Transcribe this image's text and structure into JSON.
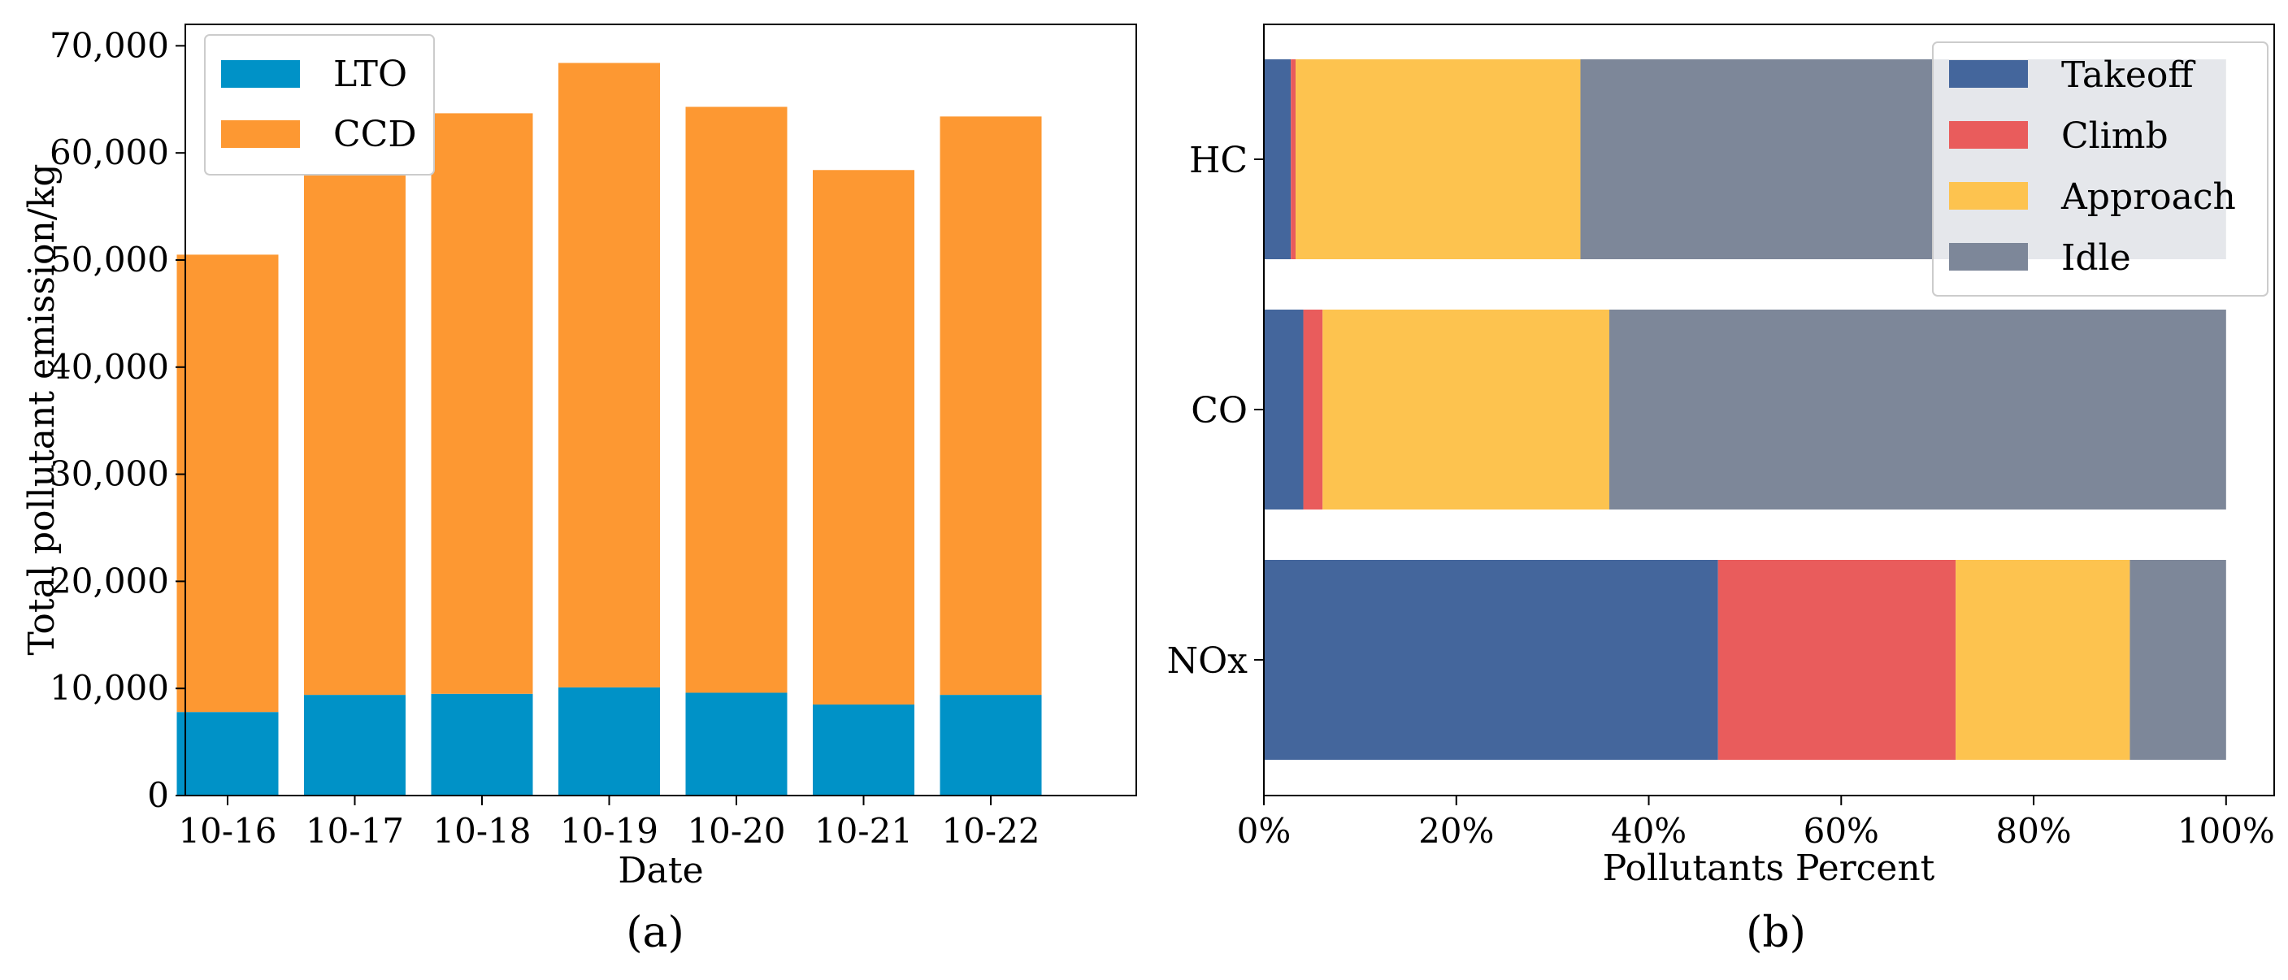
{
  "chart_data": [
    {
      "type": "bar",
      "stacked": true,
      "panel_label": "(a)",
      "xlabel": "Date",
      "ylabel": "Total pollutant emission/kg",
      "categories": [
        "10-16",
        "10-17",
        "10-18",
        "10-19",
        "10-20",
        "10-21",
        "10-22"
      ],
      "series": [
        {
          "name": "LTO",
          "color": "#0092c7",
          "values": [
            7800,
            9400,
            9500,
            10100,
            9600,
            8500,
            9400
          ]
        },
        {
          "name": "CCD",
          "color": "#fd9832",
          "values": [
            42700,
            53900,
            54200,
            58300,
            54700,
            49900,
            54000
          ]
        }
      ],
      "ylim": [
        0,
        72000
      ],
      "yticks": [
        0,
        10000,
        20000,
        30000,
        40000,
        50000,
        60000,
        70000
      ],
      "ytick_labels": [
        "0",
        "10,000",
        "20,000",
        "30,000",
        "40,000",
        "50,000",
        "60,000",
        "70,000"
      ],
      "legend_loc": "top-left",
      "grid": false
    },
    {
      "type": "bar",
      "orientation": "horizontal",
      "stacked": true,
      "panel_label": "(b)",
      "xlabel": "Pollutants Percent",
      "ylabel": "",
      "categories": [
        "HC",
        "CO",
        "NOx"
      ],
      "series": [
        {
          "name": "Takeoff",
          "color": "#44669c",
          "values": [
            2.8,
            4.1,
            47.2
          ]
        },
        {
          "name": "Climb",
          "color": "#e95c5c",
          "values": [
            0.5,
            2.0,
            24.7
          ]
        },
        {
          "name": "Approach",
          "color": "#fdc34f",
          "values": [
            29.6,
            29.8,
            18.1
          ]
        },
        {
          "name": "Idle",
          "color": "#7d8799",
          "values": [
            67.1,
            64.1,
            10.0
          ]
        }
      ],
      "xlim": [
        0,
        105
      ],
      "xticks": [
        0,
        20,
        40,
        60,
        80,
        100
      ],
      "xtick_labels": [
        "0%",
        "20%",
        "40%",
        "60%",
        "80%",
        "100%"
      ],
      "legend_loc": "top-right",
      "grid": false
    }
  ]
}
